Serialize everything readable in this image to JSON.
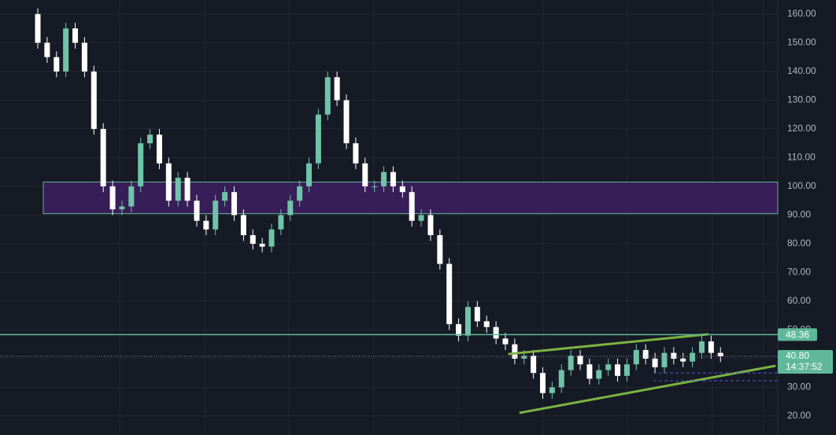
{
  "chart_data": {
    "type": "candlestick",
    "open": [
      160,
      150,
      145,
      140,
      155,
      150,
      140,
      120,
      100,
      92,
      93,
      100,
      115,
      118,
      108,
      95,
      103,
      95,
      88,
      85,
      95,
      98,
      90,
      83,
      80,
      79,
      85,
      90,
      95,
      100,
      108,
      125,
      138,
      130,
      115,
      108,
      100,
      100,
      105,
      100,
      98,
      88,
      90,
      83,
      73,
      52,
      48,
      58,
      53,
      51,
      47,
      45,
      40,
      41,
      35,
      28,
      30,
      36,
      41,
      38,
      33,
      36,
      38,
      34,
      38,
      43,
      40,
      37,
      42,
      40,
      39,
      42,
      46,
      42
    ],
    "high": [
      162,
      152,
      147,
      157,
      157,
      152,
      142,
      122,
      102,
      95,
      102,
      117,
      120,
      120,
      110,
      105,
      105,
      97,
      90,
      97,
      100,
      100,
      92,
      85,
      82,
      87,
      92,
      97,
      102,
      110,
      127,
      140,
      140,
      132,
      117,
      110,
      102,
      107,
      107,
      102,
      100,
      92,
      92,
      85,
      75,
      54,
      60,
      60,
      55,
      53,
      49,
      47,
      43,
      43,
      37,
      32,
      38,
      43,
      43,
      40,
      38,
      40,
      40,
      40,
      45,
      45,
      42,
      44,
      44,
      42,
      44,
      48,
      48,
      44
    ],
    "low": [
      148,
      143,
      138,
      138,
      148,
      138,
      118,
      98,
      90,
      90,
      91,
      98,
      113,
      106,
      93,
      93,
      93,
      86,
      83,
      83,
      93,
      88,
      81,
      78,
      77,
      77,
      83,
      88,
      93,
      98,
      106,
      123,
      128,
      113,
      106,
      98,
      98,
      98,
      98,
      96,
      86,
      86,
      81,
      71,
      50,
      46,
      46,
      51,
      49,
      45,
      43,
      38,
      38,
      33,
      26,
      26,
      28,
      34,
      36,
      31,
      31,
      34,
      32,
      32,
      36,
      38,
      35,
      35,
      38,
      37,
      37,
      40,
      40,
      38.8
    ],
    "close": [
      150,
      145,
      140,
      155,
      150,
      140,
      120,
      100,
      92,
      93,
      100,
      115,
      118,
      108,
      95,
      103,
      95,
      88,
      85,
      95,
      98,
      90,
      83,
      80,
      79,
      85,
      90,
      95,
      100,
      108,
      125,
      138,
      130,
      115,
      108,
      100,
      100,
      105,
      100,
      98,
      88,
      90,
      83,
      73,
      52,
      48,
      58,
      53,
      51,
      47,
      45,
      40,
      41,
      35,
      28,
      30,
      36,
      41,
      38,
      33,
      36,
      38,
      34,
      38,
      43,
      40,
      37,
      42,
      40,
      39,
      42,
      46,
      42,
      40.8
    ],
    "up_color": "#6fc3a8",
    "down_color": "#ffffff",
    "ylim": [
      13.4,
      164.9
    ],
    "yticks": [
      {
        "value": 20,
        "label": "20.00"
      },
      {
        "value": 30,
        "label": "30.00"
      },
      {
        "value": 40,
        "label": "40.00"
      },
      {
        "value": 50,
        "label": "50.00"
      },
      {
        "value": 60,
        "label": "60.00"
      },
      {
        "value": 70,
        "label": "70.00"
      },
      {
        "value": 80,
        "label": "80.00"
      },
      {
        "value": 90,
        "label": "90.00"
      },
      {
        "value": 100,
        "label": "100.00"
      },
      {
        "value": 110,
        "label": "110.00"
      },
      {
        "value": 120,
        "label": "120.00"
      },
      {
        "value": 130,
        "label": "130.00"
      },
      {
        "value": 140,
        "label": "140.00"
      },
      {
        "value": 150,
        "label": "150.00"
      },
      {
        "value": 160,
        "label": "160.00"
      }
    ],
    "grid": true,
    "zone": {
      "from": 90.5,
      "to": 101.5,
      "color": "#3b1f5e"
    },
    "horizontal_line": {
      "value": 48.36,
      "color": "#5fb89a"
    },
    "last_price": {
      "value": 40.8,
      "label": "40.80",
      "countdown": "14:37:52",
      "color": "#5fb89a"
    },
    "dashed_lines": [
      35,
      32.3
    ],
    "trend_lines": [
      {
        "x": [
          50.3,
          71.7
        ],
        "y": [
          41.6,
          48.5
        ]
      },
      {
        "x": [
          51.5,
          78.9
        ],
        "y": [
          21.1,
          37.5
        ]
      }
    ],
    "trend_color": "#7cb342"
  }
}
